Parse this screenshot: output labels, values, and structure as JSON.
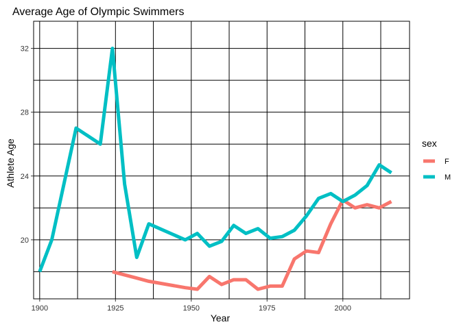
{
  "chart_data": {
    "type": "line",
    "title": "Average Age of Olympic Swimmers",
    "xlabel": "Year",
    "ylabel": "Athlete Age",
    "xlim": [
      1898,
      2022
    ],
    "ylim": [
      16.3,
      33.7
    ],
    "x_ticks": [
      1900,
      1925,
      1950,
      1975,
      2000
    ],
    "y_ticks": [
      20,
      24,
      28,
      32
    ],
    "grid": true,
    "legend": {
      "title": "sex",
      "placement": "right"
    },
    "series": [
      {
        "name": "F",
        "color": "#F8766D",
        "points": [
          [
            1924,
            18.0
          ],
          [
            1928,
            17.8
          ],
          [
            1932,
            17.6
          ],
          [
            1936,
            17.4
          ],
          [
            1948,
            17.0
          ],
          [
            1952,
            16.9
          ],
          [
            1956,
            17.7
          ],
          [
            1960,
            17.2
          ],
          [
            1964,
            17.5
          ],
          [
            1968,
            17.5
          ],
          [
            1972,
            16.9
          ],
          [
            1976,
            17.1
          ],
          [
            1980,
            17.1
          ],
          [
            1984,
            18.8
          ],
          [
            1988,
            19.3
          ],
          [
            1992,
            19.2
          ],
          [
            1996,
            21.0
          ],
          [
            2000,
            22.5
          ],
          [
            2004,
            22.0
          ],
          [
            2008,
            22.2
          ],
          [
            2012,
            22.0
          ],
          [
            2016,
            22.4
          ]
        ]
      },
      {
        "name": "M",
        "color": "#00BFC4",
        "points": [
          [
            1900,
            18.0
          ],
          [
            1904,
            20.0
          ],
          [
            1908,
            23.5
          ],
          [
            1912,
            27.0
          ],
          [
            1920,
            26.0
          ],
          [
            1924,
            32.0
          ],
          [
            1928,
            23.5
          ],
          [
            1932,
            18.9
          ],
          [
            1936,
            21.0
          ],
          [
            1948,
            20.0
          ],
          [
            1952,
            20.4
          ],
          [
            1956,
            19.6
          ],
          [
            1960,
            19.9
          ],
          [
            1964,
            20.9
          ],
          [
            1968,
            20.4
          ],
          [
            1972,
            20.7
          ],
          [
            1976,
            20.1
          ],
          [
            1980,
            20.2
          ],
          [
            1984,
            20.6
          ],
          [
            1988,
            21.5
          ],
          [
            1992,
            22.6
          ],
          [
            1996,
            22.9
          ],
          [
            2000,
            22.4
          ],
          [
            2004,
            22.8
          ],
          [
            2008,
            23.4
          ],
          [
            2012,
            24.7
          ],
          [
            2016,
            24.2
          ]
        ]
      }
    ]
  }
}
